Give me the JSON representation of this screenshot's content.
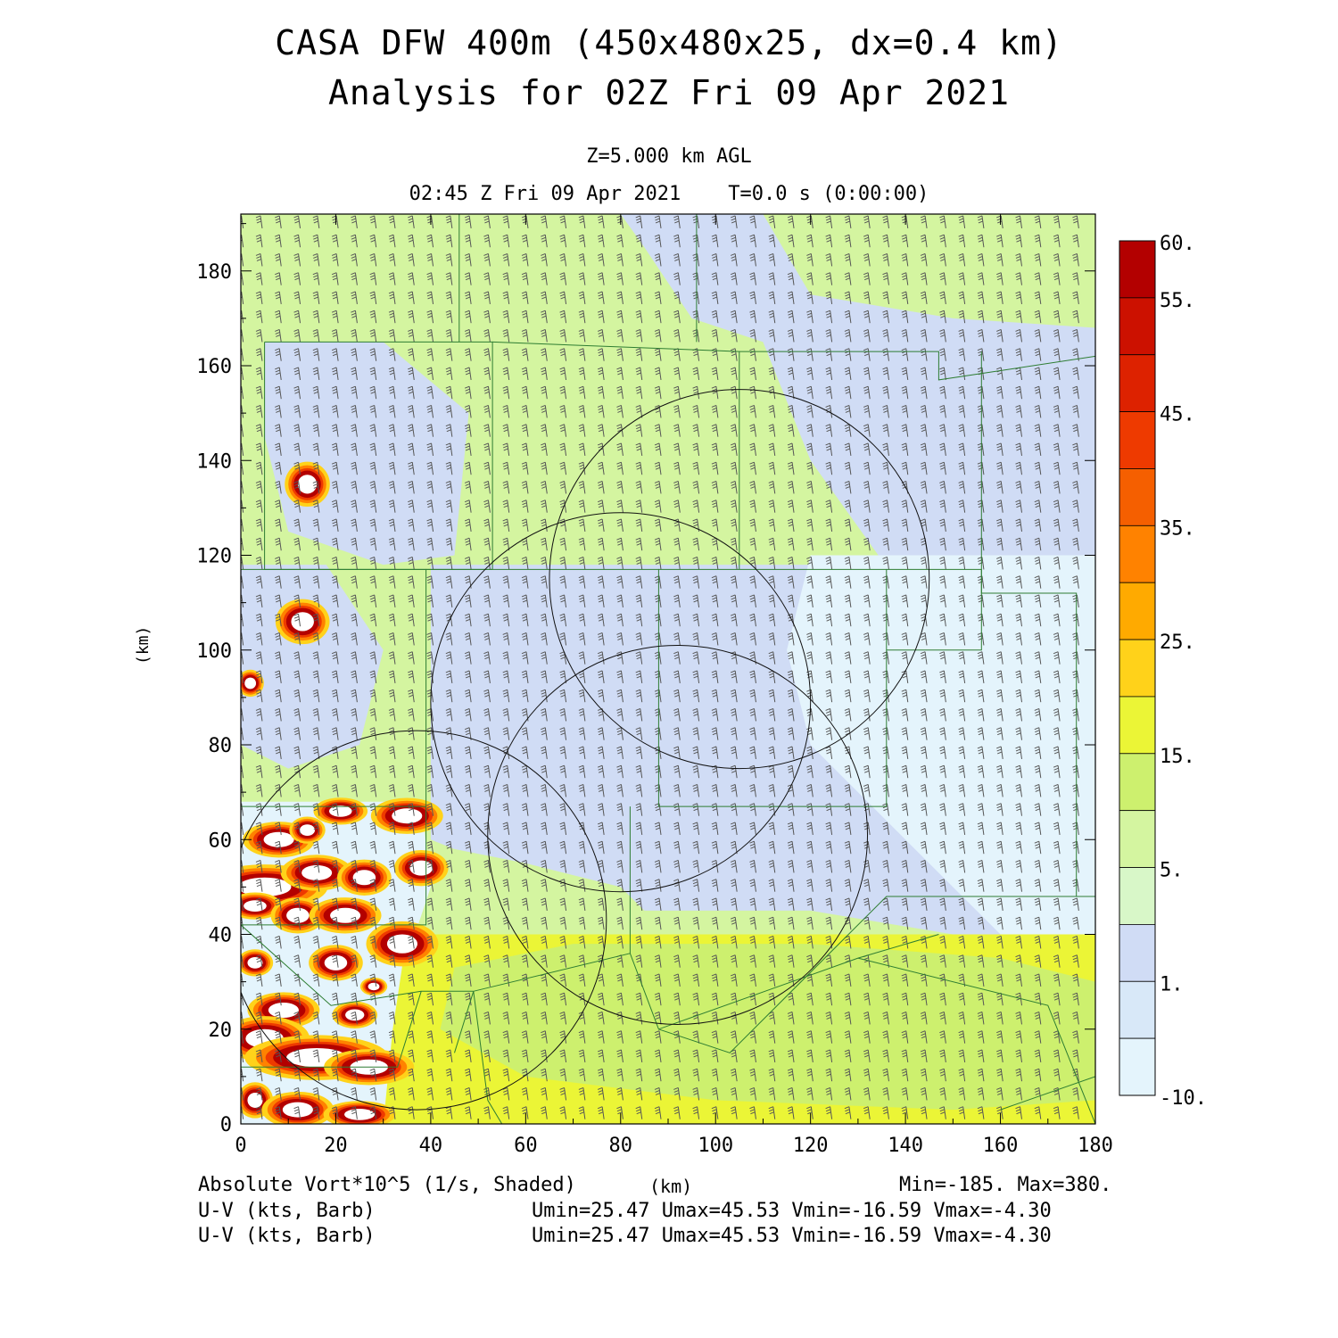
{
  "title": "CASA DFW 400m (450x480x25, dx=0.4 km)",
  "subtitle": "Analysis for 02Z Fri 09 Apr 2021",
  "level": "Z=5.000 km AGL",
  "valid_time": "02:45 Z Fri 09 Apr 2021    T=0.0 s (0:00:00)",
  "axis_units": "(km)",
  "footer": {
    "field1": "Absolute Vort*10^5 (1/s, Shaded)",
    "minmax": "Min=-185. Max=380.",
    "field2": "U-V (kts, Barb)",
    "stats2": "Umin=25.47 Umax=45.53 Vmin=-16.59 Vmax=-4.30",
    "field3": "U-V (kts, Barb)",
    "stats3": "Umin=25.47 Umax=45.53 Vmin=-16.59 Vmax=-4.30"
  },
  "chart_data": {
    "type": "heatmap",
    "xlim": [
      0,
      180
    ],
    "ylim": [
      0,
      192
    ],
    "x_ticks": [
      0,
      20,
      40,
      60,
      80,
      100,
      120,
      140,
      160,
      180
    ],
    "y_ticks": [
      0,
      20,
      40,
      60,
      80,
      100,
      120,
      140,
      160,
      180
    ],
    "colorbar": {
      "tick_labels": [
        "60.",
        "55.",
        "45.",
        "35.",
        "25.",
        "15.",
        "5.",
        "1.",
        "-10."
      ],
      "tick_values": [
        60,
        55,
        45,
        35,
        25,
        15,
        5,
        1,
        -10
      ],
      "colors": [
        "#b30000",
        "#cc1100",
        "#dd2200",
        "#ee3a00",
        "#f55f00",
        "#ff8200",
        "#ffaa00",
        "#ffd21a",
        "#ebf536",
        "#cdf06e",
        "#d4f5a0",
        "#d8f7c8",
        "#d0dcf5",
        "#d8e8f8",
        "#e4f4fc"
      ]
    },
    "background_field": "#d4f5a0",
    "regions": [
      {
        "level": 1,
        "color": "#d0dcf5",
        "polygon": [
          [
            58,
            118
          ],
          [
            100,
            118
          ],
          [
            140,
            118
          ],
          [
            160,
            112
          ],
          [
            180,
            112
          ],
          [
            180,
            40
          ],
          [
            150,
            40
          ],
          [
            120,
            45
          ],
          [
            100,
            45
          ],
          [
            85,
            45
          ],
          [
            80,
            50
          ],
          [
            60,
            55
          ],
          [
            45,
            58
          ],
          [
            40,
            60
          ],
          [
            40,
            118
          ]
        ]
      },
      {
        "level": 1,
        "color": "#d0dcf5",
        "polygon": [
          [
            80,
            192
          ],
          [
            110,
            192
          ],
          [
            120,
            175
          ],
          [
            150,
            170
          ],
          [
            180,
            168
          ],
          [
            180,
            112
          ],
          [
            140,
            112
          ],
          [
            120,
            140
          ],
          [
            110,
            165
          ],
          [
            95,
            170
          ],
          [
            85,
            185
          ]
        ]
      },
      {
        "level": -5,
        "color": "#e4f4fc",
        "polygon": [
          [
            120,
            120
          ],
          [
            180,
            120
          ],
          [
            180,
            40
          ],
          [
            160,
            40
          ],
          [
            140,
            60
          ],
          [
            120,
            80
          ],
          [
            115,
            100
          ]
        ]
      },
      {
        "level": 1,
        "color": "#d0dcf5",
        "polygon": [
          [
            5,
            165
          ],
          [
            30,
            165
          ],
          [
            48,
            150
          ],
          [
            45,
            120
          ],
          [
            30,
            118
          ],
          [
            10,
            125
          ],
          [
            5,
            145
          ]
        ]
      },
      {
        "level": 1,
        "color": "#d0dcf5",
        "polygon": [
          [
            0,
            118
          ],
          [
            18,
            118
          ],
          [
            30,
            100
          ],
          [
            25,
            80
          ],
          [
            10,
            75
          ],
          [
            0,
            80
          ]
        ]
      },
      {
        "level": -5,
        "color": "#e4f4fc",
        "polygon": [
          [
            0,
            68
          ],
          [
            38,
            68
          ],
          [
            40,
            50
          ],
          [
            35,
            35
          ],
          [
            30,
            0
          ],
          [
            0,
            0
          ]
        ]
      },
      {
        "level": 15,
        "color": "#ebf536",
        "polygon": [
          [
            35,
            40
          ],
          [
            180,
            40
          ],
          [
            180,
            0
          ],
          [
            30,
            0
          ],
          [
            32,
            20
          ]
        ]
      },
      {
        "level": 10,
        "color": "#cdf06e",
        "polygon": [
          [
            45,
            33
          ],
          [
            70,
            38
          ],
          [
            120,
            38
          ],
          [
            160,
            35
          ],
          [
            180,
            30
          ],
          [
            180,
            5
          ],
          [
            150,
            3
          ],
          [
            100,
            5
          ],
          [
            60,
            10
          ],
          [
            42,
            20
          ]
        ]
      }
    ],
    "vortex_cells": [
      {
        "x": 14,
        "y": 135,
        "rx": 2.5,
        "ry": 2.5
      },
      {
        "x": 13,
        "y": 106,
        "rx": 3,
        "ry": 2.5
      },
      {
        "x": 2,
        "y": 93,
        "rx": 1.5,
        "ry": 1.5
      },
      {
        "x": 21,
        "y": 66,
        "rx": 3,
        "ry": 1.5
      },
      {
        "x": 35,
        "y": 65,
        "rx": 4,
        "ry": 2
      },
      {
        "x": 8,
        "y": 60,
        "rx": 4,
        "ry": 2
      },
      {
        "x": 14,
        "y": 62,
        "rx": 2,
        "ry": 1.5
      },
      {
        "x": 5,
        "y": 50,
        "rx": 7,
        "ry": 2.5
      },
      {
        "x": 16,
        "y": 53,
        "rx": 4,
        "ry": 2
      },
      {
        "x": 26,
        "y": 52,
        "rx": 3,
        "ry": 2
      },
      {
        "x": 38,
        "y": 54,
        "rx": 3,
        "ry": 2
      },
      {
        "x": 3,
        "y": 46,
        "rx": 3,
        "ry": 1.5
      },
      {
        "x": 12,
        "y": 44,
        "rx": 3,
        "ry": 2
      },
      {
        "x": 22,
        "y": 44,
        "rx": 4,
        "ry": 2
      },
      {
        "x": 34,
        "y": 38,
        "rx": 4,
        "ry": 2.5
      },
      {
        "x": 3,
        "y": 34,
        "rx": 2,
        "ry": 1.5
      },
      {
        "x": 20,
        "y": 34,
        "rx": 3,
        "ry": 2
      },
      {
        "x": 28,
        "y": 29,
        "rx": 1.5,
        "ry": 1
      },
      {
        "x": 9,
        "y": 24,
        "rx": 4,
        "ry": 2
      },
      {
        "x": 24,
        "y": 23,
        "rx": 2.5,
        "ry": 1.5
      },
      {
        "x": 5,
        "y": 18,
        "rx": 5,
        "ry": 2.5
      },
      {
        "x": 16,
        "y": 14,
        "rx": 8,
        "ry": 2.5
      },
      {
        "x": 27,
        "y": 12,
        "rx": 5,
        "ry": 2
      },
      {
        "x": 3,
        "y": 5,
        "rx": 2,
        "ry": 2
      },
      {
        "x": 12,
        "y": 3,
        "rx": 4,
        "ry": 2
      },
      {
        "x": 25,
        "y": 2,
        "rx": 4,
        "ry": 1.5
      }
    ],
    "range_rings": [
      {
        "cx": 105,
        "cy": 115,
        "r": 40
      },
      {
        "cx": 80,
        "cy": 89,
        "r": 40
      },
      {
        "cx": 92,
        "cy": 61,
        "r": 40
      },
      {
        "cx": 37,
        "cy": 43,
        "r": 40
      }
    ],
    "county_lines": [
      [
        [
          5,
          165
        ],
        [
          5,
          117
        ],
        [
          53,
          117
        ]
      ],
      [
        [
          5,
          165
        ],
        [
          53,
          165
        ],
        [
          53,
          117
        ]
      ],
      [
        [
          53,
          165
        ],
        [
          105,
          163
        ],
        [
          105,
          117
        ]
      ],
      [
        [
          105,
          163
        ],
        [
          147,
          163
        ],
        [
          147,
          157
        ],
        [
          180,
          162
        ]
      ],
      [
        [
          46,
          192
        ],
        [
          46,
          165
        ]
      ],
      [
        [
          96,
          192
        ],
        [
          96,
          165
        ]
      ],
      [
        [
          0,
          117
        ],
        [
          39,
          117
        ],
        [
          39,
          67
        ],
        [
          0,
          67
        ]
      ],
      [
        [
          39,
          117
        ],
        [
          88,
          117
        ],
        [
          88,
          67
        ]
      ],
      [
        [
          88,
          117
        ],
        [
          136,
          117
        ],
        [
          136,
          67
        ],
        [
          88,
          67
        ]
      ],
      [
        [
          136,
          117
        ],
        [
          156,
          117
        ],
        [
          156,
          100
        ],
        [
          136,
          100
        ]
      ],
      [
        [
          156,
          163
        ],
        [
          156,
          112
        ],
        [
          176,
          112
        ],
        [
          176,
          48
        ],
        [
          180,
          48
        ]
      ],
      [
        [
          39,
          67
        ],
        [
          39,
          42
        ],
        [
          0,
          42
        ]
      ],
      [
        [
          0,
          42
        ],
        [
          19,
          25
        ],
        [
          38,
          28
        ],
        [
          49,
          28
        ],
        [
          82,
          36
        ],
        [
          88,
          20
        ],
        [
          130,
          35
        ],
        [
          147,
          40
        ]
      ],
      [
        [
          82,
          67
        ],
        [
          82,
          36
        ]
      ],
      [
        [
          88,
          20
        ],
        [
          103,
          15
        ],
        [
          136,
          48
        ],
        [
          147,
          48
        ],
        [
          176,
          48
        ]
      ],
      [
        [
          0,
          12
        ],
        [
          33,
          12
        ],
        [
          38,
          28
        ]
      ],
      [
        [
          45,
          15
        ],
        [
          49,
          28
        ],
        [
          52,
          5
        ],
        [
          55,
          0
        ]
      ],
      [
        [
          130,
          35
        ],
        [
          170,
          25
        ],
        [
          180,
          0
        ]
      ],
      [
        [
          160,
          3
        ],
        [
          180,
          10
        ]
      ]
    ],
    "wind_barbs": {
      "direction_deg": 255,
      "speed_kts_range": [
        25.47,
        45.53
      ],
      "spacing_km": 4
    }
  }
}
